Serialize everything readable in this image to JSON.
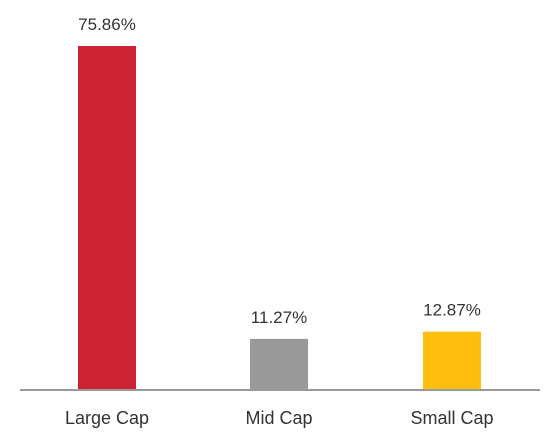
{
  "chart_data": {
    "type": "bar",
    "categories": [
      "Large Cap",
      "Mid Cap",
      "Small Cap"
    ],
    "values": [
      75.86,
      11.27,
      12.87
    ],
    "value_labels": [
      "75.86%",
      "11.27%",
      "12.87%"
    ],
    "colors": [
      "#CC2233",
      "#999999",
      "#FFBF0F"
    ],
    "axis_color": "#999999",
    "ylim": [
      0,
      75.86
    ],
    "grid": false,
    "title": "",
    "xlabel": "",
    "ylabel": ""
  }
}
